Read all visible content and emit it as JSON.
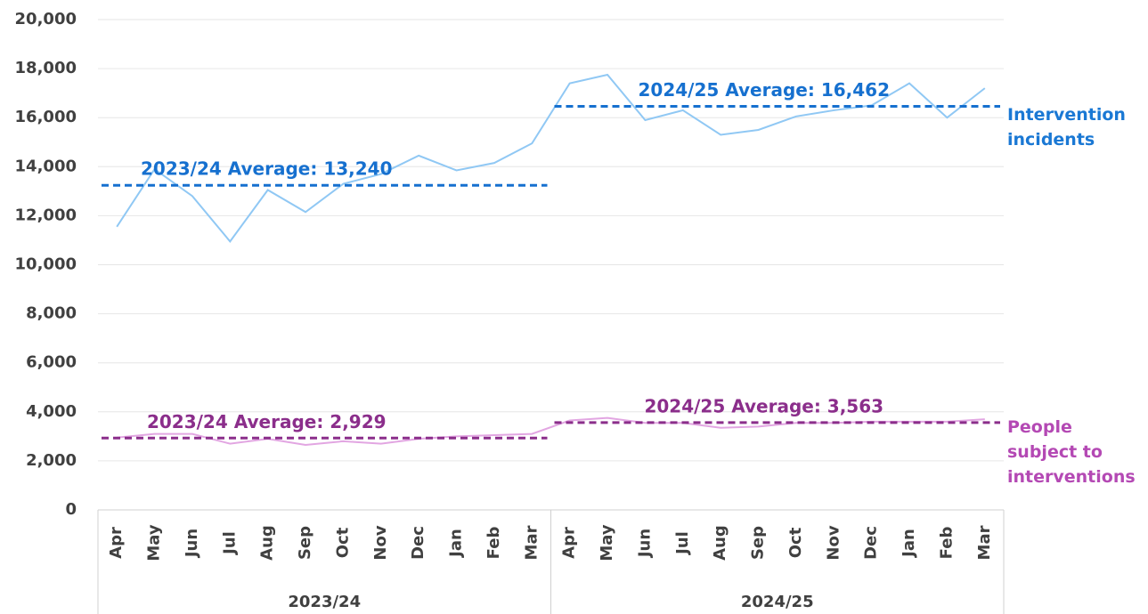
{
  "chart_data": {
    "type": "line",
    "categories": [
      "Apr",
      "May",
      "Jun",
      "Jul",
      "Aug",
      "Sep",
      "Oct",
      "Nov",
      "Dec",
      "Jan",
      "Feb",
      "Mar",
      "Apr",
      "May",
      "Jun",
      "Jul",
      "Aug",
      "Sep",
      "Oct",
      "Nov",
      "Dec",
      "Jan",
      "Feb",
      "Mar"
    ],
    "groups": [
      "2023/24",
      "2024/25"
    ],
    "series": [
      {
        "name": "Intervention incidents",
        "color": "#90c8f4",
        "label_color": "#1a78d4",
        "average_color": "#1670cf",
        "values": [
          11550,
          13900,
          12800,
          10950,
          13050,
          12150,
          13300,
          13700,
          14450,
          13850,
          14150,
          14950,
          17400,
          17750,
          15900,
          16300,
          15300,
          15500,
          16050,
          16300,
          16500,
          17400,
          16000,
          17200
        ],
        "averages": [
          {
            "label": "2023/24 Average: 13,240",
            "value": 13240
          },
          {
            "label": "2024/25 Average: 16,462",
            "value": 16462
          }
        ]
      },
      {
        "name": "People subject to interventions",
        "color": "#e2a6e2",
        "label_color": "#b449b4",
        "average_color": "#8b2e8b",
        "values": [
          2950,
          3100,
          3100,
          2700,
          2900,
          2650,
          2800,
          2700,
          2900,
          3000,
          3050,
          3100,
          3650,
          3750,
          3550,
          3550,
          3350,
          3400,
          3550,
          3550,
          3600,
          3600,
          3600,
          3700
        ],
        "averages": [
          {
            "label": "2023/24 Average: 2,929",
            "value": 2929
          },
          {
            "label": "2024/25 Average: 3,563",
            "value": 3563
          }
        ]
      }
    ],
    "ylim": [
      0,
      20000
    ],
    "yticks": [
      0,
      {
        "value": 2000,
        "label": "2,000"
      },
      {
        "value": 4000,
        "label": "4,000"
      },
      {
        "value": 6000,
        "label": "6,000"
      },
      {
        "value": 8000,
        "label": "8,000"
      },
      {
        "value": 10000,
        "label": "10,000"
      },
      {
        "value": 12000,
        "label": "12,000"
      },
      {
        "value": 14000,
        "label": "14,000"
      },
      {
        "value": 16000,
        "label": "16,000"
      },
      {
        "value": 18000,
        "label": "18,000"
      },
      {
        "value": 20000,
        "label": "20,000"
      }
    ],
    "grid": true
  }
}
